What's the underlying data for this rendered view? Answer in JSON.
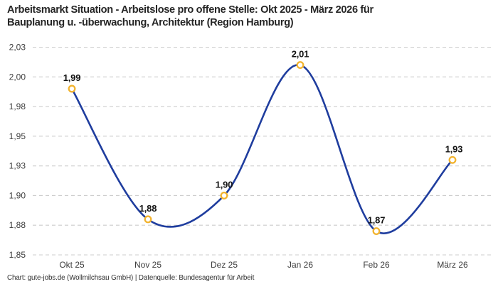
{
  "header": {
    "title_line1": "Arbeitsmarkt Situation - Arbeitslose pro offene Stelle: Okt 2025 - März 2026 für",
    "title_line2": "Bauplanung u. -überwachung, Architektur (Region Hamburg)"
  },
  "footer": {
    "credit": "Chart: gute-jobs.de (Wollmilchsau GmbH) | Datenquelle: Bundesagentur für Arbeit"
  },
  "chart_data": {
    "type": "line",
    "title": "Arbeitsmarkt Situation - Arbeitslose pro offene Stelle: Okt 2025 - März 2026 für Bauplanung u. -überwachung, Architektur (Region Hamburg)",
    "categories": [
      "Okt 25",
      "Nov 25",
      "Dez 25",
      "Jan 26",
      "Feb 26",
      "März 26"
    ],
    "values": [
      1.99,
      1.88,
      1.9,
      2.01,
      1.87,
      1.93
    ],
    "point_labels": [
      "1,99",
      "1,88",
      "1,90",
      "2,01",
      "1,87",
      "1,93"
    ],
    "ylim": [
      1.85,
      2.025
    ],
    "ytick_values": [
      1.85,
      1.875,
      1.9,
      1.925,
      1.95,
      1.975,
      2.0,
      2.025
    ],
    "ytick_labels": [
      "1,85",
      "1,88",
      "1,90",
      "1,93",
      "1,95",
      "1,98",
      "2,00",
      "2,03"
    ],
    "grid": "horizontal-dashed",
    "legend_position": "none",
    "smooth": true,
    "colors": {
      "line": "#1f3d9e",
      "marker_ring": "#f2b32e",
      "marker_fill": "#ffffff",
      "grid": "#cccccc",
      "tick_text": "#3d3d3d",
      "point_label_text": "#141414"
    }
  }
}
